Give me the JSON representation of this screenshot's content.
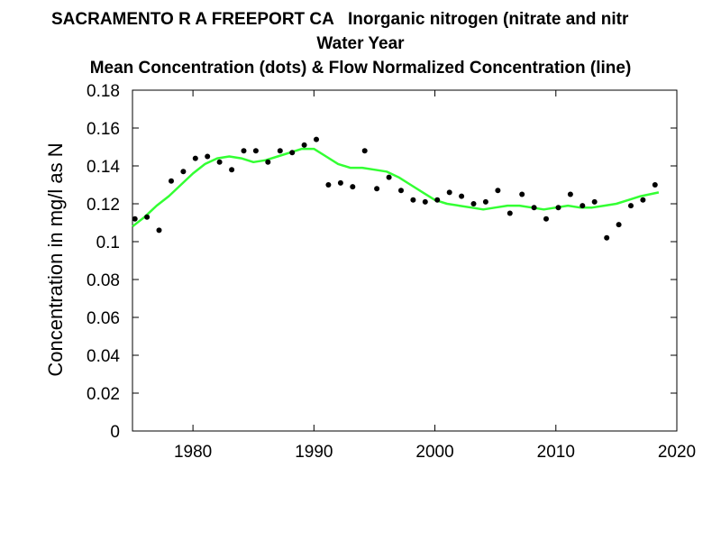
{
  "chart_data": {
    "type": "scatter",
    "title_line1": "SACRAMENTO R A FREEPORT CA   Inorganic nitrogen (nitrate and nitr",
    "title_line2": "Water Year",
    "title_line3": "Mean Concentration (dots) & Flow Normalized Concentration (line)",
    "xlabel": "",
    "ylabel": "Concentration in mg/l as N",
    "xlim": [
      1975,
      2020
    ],
    "ylim": [
      0,
      0.18
    ],
    "x_ticks": [
      1980,
      1990,
      2000,
      2010,
      2020
    ],
    "x_tick_labels": [
      "1980",
      "1990",
      "2000",
      "2010",
      "2020"
    ],
    "y_ticks": [
      0,
      0.02,
      0.04,
      0.06,
      0.08,
      0.1,
      0.12,
      0.14,
      0.16,
      0.18
    ],
    "y_tick_labels": [
      "0",
      "0.02",
      "0.04",
      "0.06",
      "0.08",
      "0.1",
      "0.12",
      "0.14",
      "0.16",
      "0.18"
    ],
    "grid": false,
    "series": [
      {
        "kind": "dots",
        "color": "#000000",
        "x": [
          1975.2,
          1976.2,
          1977.2,
          1978.2,
          1979.2,
          1980.2,
          1981.2,
          1982.2,
          1983.2,
          1984.2,
          1985.2,
          1986.2,
          1987.2,
          1988.2,
          1989.2,
          1990.2,
          1991.2,
          1992.2,
          1993.2,
          1994.2,
          1995.2,
          1996.2,
          1997.2,
          1998.2,
          1999.2,
          2000.2,
          2001.2,
          2002.2,
          2003.2,
          2004.2,
          2005.2,
          2006.2,
          2007.2,
          2008.2,
          2009.2,
          2010.2,
          2011.2,
          2012.2,
          2013.2,
          2014.2,
          2015.2,
          2016.2,
          2017.2,
          2018.2
        ],
        "y": [
          0.112,
          0.113,
          0.106,
          0.132,
          0.137,
          0.144,
          0.145,
          0.142,
          0.138,
          0.148,
          0.148,
          0.142,
          0.148,
          0.147,
          0.151,
          0.154,
          0.13,
          0.131,
          0.129,
          0.148,
          0.128,
          0.134,
          0.127,
          0.122,
          0.121,
          0.122,
          0.126,
          0.124,
          0.12,
          0.121,
          0.127,
          0.115,
          0.125,
          0.118,
          0.112,
          0.118,
          0.125,
          0.119,
          0.121,
          0.102,
          0.109,
          0.119,
          0.122,
          0.13
        ]
      },
      {
        "kind": "line",
        "color": "#33ff33",
        "x": [
          1975.0,
          1976.0,
          1977.0,
          1978.0,
          1979.0,
          1980.0,
          1981.0,
          1982.0,
          1983.0,
          1984.0,
          1985.0,
          1986.0,
          1987.0,
          1988.0,
          1989.0,
          1990.0,
          1991.0,
          1992.0,
          1993.0,
          1994.0,
          1995.0,
          1996.0,
          1997.0,
          1998.0,
          1999.0,
          2000.0,
          2001.0,
          2002.0,
          2003.0,
          2004.0,
          2005.0,
          2006.0,
          2007.0,
          2008.0,
          2009.0,
          2010.0,
          2011.0,
          2012.0,
          2013.0,
          2014.0,
          2015.0,
          2016.0,
          2017.0,
          2018.5
        ],
        "y": [
          0.108,
          0.113,
          0.119,
          0.124,
          0.13,
          0.136,
          0.141,
          0.144,
          0.145,
          0.144,
          0.142,
          0.143,
          0.145,
          0.147,
          0.149,
          0.149,
          0.145,
          0.141,
          0.139,
          0.139,
          0.138,
          0.137,
          0.134,
          0.13,
          0.126,
          0.122,
          0.12,
          0.119,
          0.118,
          0.117,
          0.118,
          0.119,
          0.119,
          0.118,
          0.117,
          0.118,
          0.119,
          0.118,
          0.118,
          0.119,
          0.12,
          0.122,
          0.124,
          0.126
        ]
      }
    ]
  }
}
